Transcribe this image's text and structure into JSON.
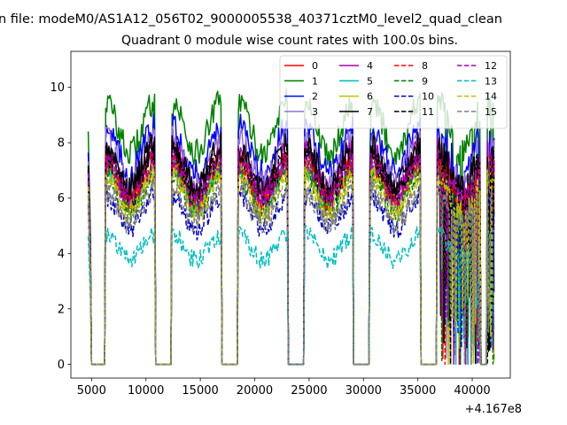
{
  "figure": {
    "suptitle": "n file: modeM0/AS1A12_056T02_9000005538_40371cztM0_level2_quad_clean",
    "title": "Quadrant 0 module wise count rates with 100.0s bins.",
    "x_offset_label": "+4.167e8"
  },
  "chart_data": {
    "type": "line",
    "title": "Quadrant 0 module wise count rates with 100.0s bins.",
    "xlabel": "",
    "ylabel": "",
    "x_offset": 416700000,
    "xlim": [
      3100,
      43500
    ],
    "ylim": [
      -0.5,
      11.3
    ],
    "xticks": [
      5000,
      10000,
      15000,
      20000,
      25000,
      30000,
      35000,
      40000
    ],
    "yticks": [
      0,
      2,
      4,
      6,
      8,
      10
    ],
    "xtick_labels": [
      "5000",
      "10000",
      "15000",
      "20000",
      "25000",
      "30000",
      "35000",
      "40000"
    ],
    "ytick_labels": [
      "0",
      "2",
      "4",
      "6",
      "8",
      "10"
    ],
    "grid": false,
    "legend_position": "top-right",
    "legend_columns": 4,
    "segments": [
      {
        "start": 4700,
        "end": 6300
      },
      {
        "start": 10800,
        "end": 12400
      },
      {
        "start": 16900,
        "end": 18500
      },
      {
        "start": 23000,
        "end": 24600
      },
      {
        "start": 29000,
        "end": 30600
      },
      {
        "start": 35200,
        "end": 36800
      },
      {
        "start": 40700,
        "end": 41400
      }
    ],
    "active_ranges": [
      [
        6300,
        10800
      ],
      [
        12400,
        16900
      ],
      [
        18500,
        23000
      ],
      [
        24600,
        29000
      ],
      [
        30600,
        35200
      ],
      [
        36800,
        40700
      ],
      [
        41400,
        42000
      ]
    ],
    "series": [
      {
        "name": "0",
        "color": "#ff0000",
        "dash": "solid",
        "level": 7.3,
        "noise": 0.45
      },
      {
        "name": "1",
        "color": "#008000",
        "dash": "solid",
        "level": 9.3,
        "noise": 0.5
      },
      {
        "name": "2",
        "color": "#0000ff",
        "dash": "solid",
        "level": 8.4,
        "noise": 0.5
      },
      {
        "name": "3",
        "color": "#9370db",
        "dash": "solid",
        "level": 8.0,
        "noise": 0.45
      },
      {
        "name": "4",
        "color": "#aa00aa",
        "dash": "solid",
        "level": 7.6,
        "noise": 0.45
      },
      {
        "name": "5",
        "color": "#00bfbf",
        "dash": "solid",
        "level": 7.0,
        "noise": 0.4
      },
      {
        "name": "6",
        "color": "#bfbf00",
        "dash": "solid",
        "level": 7.0,
        "noise": 0.4
      },
      {
        "name": "7",
        "color": "#000000",
        "dash": "solid",
        "level": 7.7,
        "noise": 0.55
      },
      {
        "name": "8",
        "color": "#ff0000",
        "dash": "dashed",
        "level": 7.1,
        "noise": 0.45
      },
      {
        "name": "9",
        "color": "#008000",
        "dash": "dashed",
        "level": 6.7,
        "noise": 0.4
      },
      {
        "name": "10",
        "color": "#0000cc",
        "dash": "dashed",
        "level": 6.0,
        "noise": 0.45
      },
      {
        "name": "11",
        "color": "#000000",
        "dash": "dashed",
        "level": 7.4,
        "noise": 0.5
      },
      {
        "name": "12",
        "color": "#aa00aa",
        "dash": "dashed",
        "level": 7.2,
        "noise": 0.45
      },
      {
        "name": "13",
        "color": "#00bfbf",
        "dash": "dashed",
        "level": 4.6,
        "noise": 0.35
      },
      {
        "name": "14",
        "color": "#bfbf00",
        "dash": "dashed",
        "level": 6.6,
        "noise": 0.4
      },
      {
        "name": "15",
        "color": "#808080",
        "dash": "dashed",
        "level": 6.2,
        "noise": 0.45
      }
    ]
  }
}
